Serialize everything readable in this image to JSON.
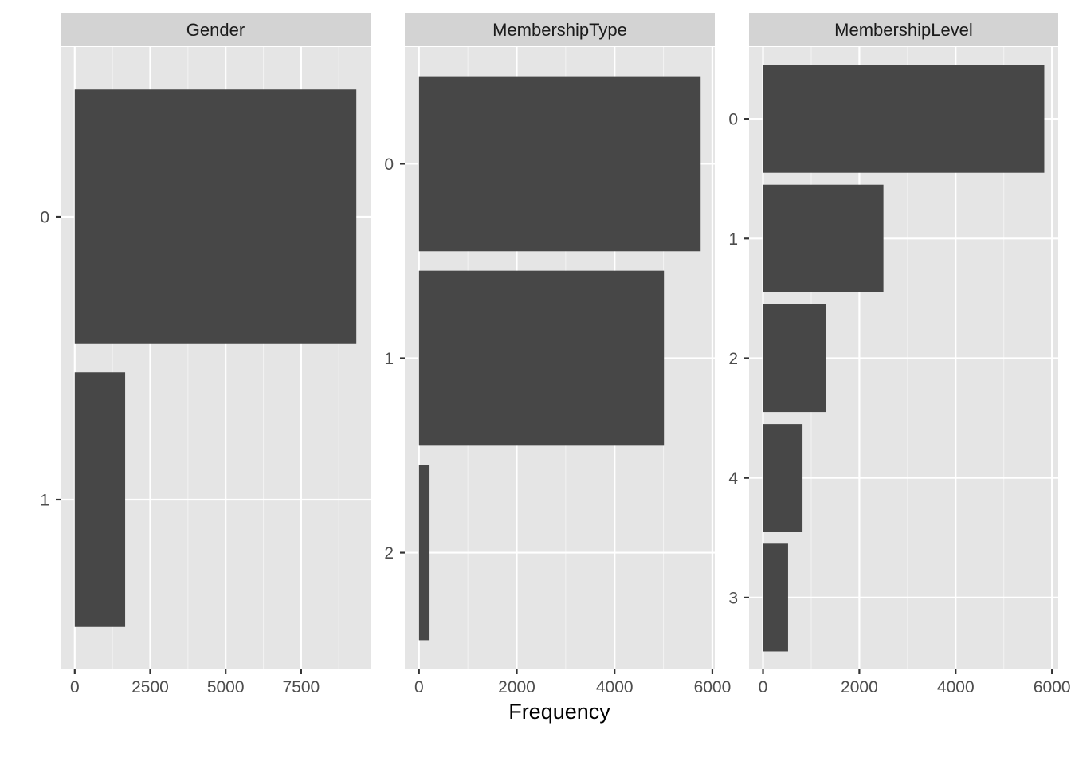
{
  "chart_data": {
    "type": "bar",
    "orientation": "horizontal",
    "xlabel": "Frequency",
    "ylabel": "",
    "grid": true,
    "bar_color": "#474747",
    "panel_background": "#e5e5e5",
    "strip_background": "#d3d3d3",
    "panels": [
      {
        "title": "Gender",
        "categories": [
          "0",
          "1"
        ],
        "values": [
          9330,
          1670
        ],
        "xlim": [
          -470,
          9800
        ],
        "xticks": [
          0,
          2500,
          5000,
          7500
        ],
        "xtick_labels": [
          "0",
          "2500",
          "5000",
          "7500"
        ]
      },
      {
        "title": "MembershipType",
        "categories": [
          "0",
          "1",
          "2"
        ],
        "values": [
          5760,
          5010,
          200
        ],
        "xlim": [
          -290,
          6050
        ],
        "xticks": [
          0,
          2000,
          4000,
          6000
        ],
        "xtick_labels": [
          "0",
          "2000",
          "4000",
          "6000"
        ]
      },
      {
        "title": "MembershipLevel",
        "categories": [
          "0",
          "1",
          "2",
          "4",
          "3"
        ],
        "values": [
          5840,
          2500,
          1310,
          820,
          520
        ],
        "xlim": [
          -290,
          6130
        ],
        "xticks": [
          0,
          2000,
          4000,
          6000
        ],
        "xtick_labels": [
          "0",
          "2000",
          "4000",
          "6000"
        ]
      }
    ]
  }
}
